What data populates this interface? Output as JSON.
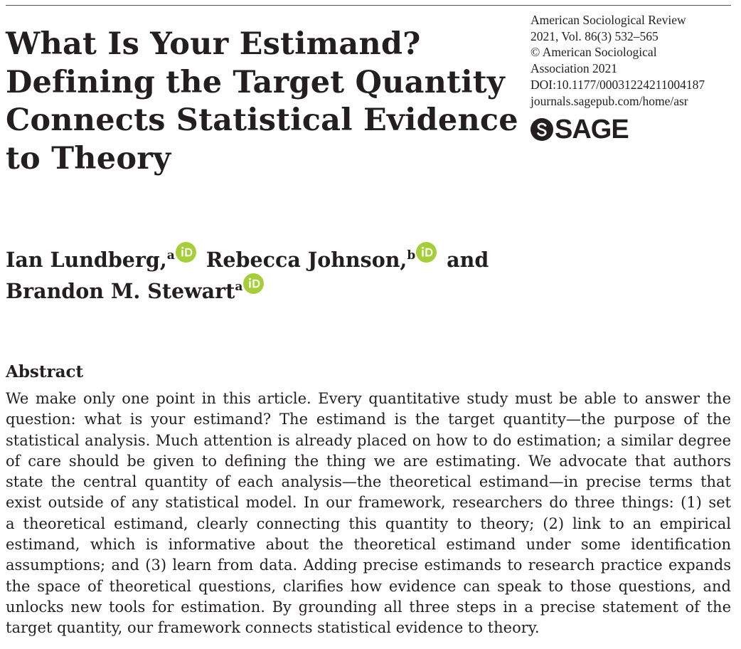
{
  "title_lines": [
    "What Is Your Estimand?",
    "Defining the Target Quantity",
    "Connects Statistical Evidence",
    "to Theory"
  ],
  "journal_meta": [
    "American Sociological Review",
    "2021, Vol. 86(3) 532–565",
    "© American Sociological",
    "Association 2021",
    "DOI:10.1177/00031224211004187",
    "journals.sagepub.com/home/asr"
  ],
  "publisher_logo": {
    "text": "SAGE",
    "icon": "sage-s-icon",
    "color": "#231f20"
  },
  "authors": [
    {
      "name": "Ian Lundberg,",
      "affiliation": "a",
      "orcid_icon": "orcid-icon"
    },
    {
      "name": "Rebecca Johnson,",
      "affiliation": "b",
      "orcid_icon": "orcid-icon"
    },
    {
      "connector": "and"
    },
    {
      "name": "Brandon M. Stewart",
      "affiliation": "a",
      "orcid_icon": "orcid-icon"
    }
  ],
  "orcid_color": "#a6ce39",
  "abstract": {
    "heading": "Abstract",
    "lines": [
      "We make only one point in this article. Every quantitative study must be able to answer the",
      "question: what is your estimand? The estimand is the target quantity—the purpose of the",
      "statistical analysis. Much attention is already placed on how to do estimation; a similar degree",
      "of care should be given to defining the thing we are estimating. We advocate that authors",
      "state the central quantity of each analysis—the theoretical estimand—in precise terms that",
      "exist outside of any statistical model. In our framework, researchers do three things: (1) set",
      "a theoretical estimand, clearly connecting this quantity to theory; (2) link to an empirical",
      "estimand, which is informative about the theoretical estimand under some identification",
      "assumptions; and (3) learn from data. Adding precise estimands to research practice expands",
      "the space of theoretical questions, clarifies how evidence can speak to those questions, and",
      "unlocks new tools for estimation. By grounding all three steps in a precise statement of the",
      "target quantity, our framework connects statistical evidence to theory."
    ]
  }
}
